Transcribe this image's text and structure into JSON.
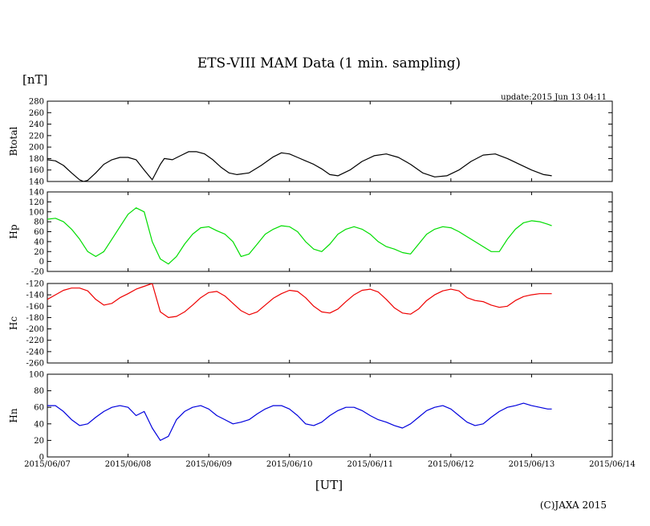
{
  "title": "ETS-VIII MAM Data (1 min. sampling)",
  "unit_label": "[nT]",
  "update_text": "update:2015 Jun 13 04:11",
  "xlabel": "[UT]",
  "copyright": "(C)JAXA 2015",
  "chart_data": {
    "type": "line",
    "x_ticks": [
      "2015/06/07",
      "2015/06/08",
      "2015/06/09",
      "2015/06/10",
      "2015/06/11",
      "2015/06/12",
      "2015/06/13",
      "2015/06/14"
    ],
    "x_range_days": [
      0,
      7
    ],
    "panels": [
      {
        "name": "Btotal",
        "color": "#000000",
        "ylim": [
          140,
          280
        ],
        "yticks": [
          140,
          160,
          180,
          200,
          220,
          240,
          260,
          280
        ],
        "x": [
          0,
          0.1,
          0.2,
          0.3,
          0.4,
          0.45,
          0.5,
          0.6,
          0.7,
          0.8,
          0.9,
          1.0,
          1.1,
          1.2,
          1.3,
          1.4,
          1.45,
          1.55,
          1.65,
          1.75,
          1.85,
          1.95,
          2.05,
          2.15,
          2.25,
          2.35,
          2.5,
          2.65,
          2.8,
          2.9,
          3.0,
          3.1,
          3.2,
          3.3,
          3.4,
          3.5,
          3.6,
          3.75,
          3.9,
          4.05,
          4.2,
          4.35,
          4.5,
          4.65,
          4.8,
          4.95,
          5.1,
          5.25,
          5.4,
          5.55,
          5.7,
          5.85,
          6.0,
          6.15,
          6.25
        ],
        "values": [
          178,
          176,
          168,
          155,
          143,
          140,
          142,
          155,
          170,
          178,
          182,
          182,
          178,
          160,
          143,
          170,
          180,
          178,
          185,
          192,
          192,
          188,
          178,
          165,
          155,
          152,
          155,
          168,
          183,
          190,
          188,
          182,
          176,
          170,
          162,
          152,
          150,
          160,
          175,
          185,
          188,
          182,
          170,
          155,
          148,
          150,
          160,
          175,
          186,
          188,
          180,
          170,
          160,
          152,
          150
        ]
      },
      {
        "name": "Hp",
        "color": "#00dd00",
        "ylim": [
          -20,
          140
        ],
        "yticks": [
          -20,
          0,
          20,
          40,
          60,
          80,
          100,
          120,
          140
        ],
        "x": [
          0,
          0.1,
          0.2,
          0.3,
          0.4,
          0.5,
          0.6,
          0.7,
          0.8,
          0.9,
          1.0,
          1.1,
          1.2,
          1.3,
          1.4,
          1.5,
          1.6,
          1.7,
          1.8,
          1.9,
          2.0,
          2.1,
          2.2,
          2.3,
          2.4,
          2.5,
          2.6,
          2.7,
          2.8,
          2.9,
          3.0,
          3.1,
          3.2,
          3.3,
          3.4,
          3.5,
          3.6,
          3.7,
          3.8,
          3.9,
          4.0,
          4.1,
          4.2,
          4.3,
          4.4,
          4.5,
          4.6,
          4.7,
          4.8,
          4.9,
          5.0,
          5.1,
          5.2,
          5.3,
          5.4,
          5.5,
          5.6,
          5.7,
          5.8,
          5.9,
          6.0,
          6.1,
          6.2,
          6.25
        ],
        "values": [
          85,
          87,
          80,
          65,
          45,
          20,
          10,
          20,
          45,
          70,
          95,
          108,
          100,
          40,
          5,
          -5,
          10,
          35,
          55,
          68,
          70,
          62,
          55,
          40,
          10,
          15,
          35,
          55,
          65,
          72,
          70,
          60,
          40,
          25,
          20,
          35,
          55,
          65,
          70,
          65,
          55,
          40,
          30,
          25,
          18,
          15,
          35,
          55,
          65,
          70,
          68,
          60,
          50,
          40,
          30,
          20,
          20,
          45,
          65,
          78,
          82,
          80,
          75,
          72
        ]
      },
      {
        "name": "Hc",
        "color": "#ee0000",
        "ylim": [
          -260,
          -120
        ],
        "yticks": [
          -260,
          -240,
          -220,
          -200,
          -180,
          -160,
          -140,
          -120
        ],
        "x": [
          0,
          0.1,
          0.2,
          0.3,
          0.4,
          0.5,
          0.6,
          0.7,
          0.8,
          0.9,
          1.0,
          1.1,
          1.2,
          1.3,
          1.4,
          1.5,
          1.6,
          1.7,
          1.8,
          1.9,
          2.0,
          2.1,
          2.2,
          2.3,
          2.4,
          2.5,
          2.6,
          2.7,
          2.8,
          2.9,
          3.0,
          3.1,
          3.2,
          3.3,
          3.4,
          3.5,
          3.6,
          3.7,
          3.8,
          3.9,
          4.0,
          4.1,
          4.2,
          4.3,
          4.4,
          4.5,
          4.6,
          4.7,
          4.8,
          4.9,
          5.0,
          5.1,
          5.2,
          5.3,
          5.4,
          5.5,
          5.6,
          5.7,
          5.8,
          5.9,
          6.0,
          6.1,
          6.2,
          6.25
        ],
        "values": [
          -148,
          -140,
          -132,
          -128,
          -128,
          -133,
          -148,
          -158,
          -155,
          -145,
          -138,
          -130,
          -125,
          -120,
          -170,
          -180,
          -178,
          -170,
          -158,
          -145,
          -136,
          -134,
          -142,
          -155,
          -168,
          -175,
          -170,
          -158,
          -146,
          -138,
          -132,
          -134,
          -145,
          -160,
          -170,
          -172,
          -165,
          -152,
          -140,
          -132,
          -130,
          -135,
          -148,
          -163,
          -172,
          -174,
          -165,
          -150,
          -140,
          -133,
          -130,
          -133,
          -145,
          -150,
          -152,
          -158,
          -162,
          -160,
          -150,
          -143,
          -140,
          -138,
          -138,
          -138
        ]
      },
      {
        "name": "Hn",
        "color": "#0000dd",
        "ylim": [
          0,
          100
        ],
        "yticks": [
          0,
          20,
          40,
          60,
          80,
          100
        ],
        "x": [
          0,
          0.1,
          0.2,
          0.3,
          0.4,
          0.5,
          0.6,
          0.7,
          0.8,
          0.9,
          1.0,
          1.1,
          1.2,
          1.3,
          1.4,
          1.5,
          1.6,
          1.7,
          1.8,
          1.9,
          2.0,
          2.1,
          2.2,
          2.3,
          2.4,
          2.5,
          2.6,
          2.7,
          2.8,
          2.9,
          3.0,
          3.1,
          3.2,
          3.3,
          3.4,
          3.5,
          3.6,
          3.7,
          3.8,
          3.9,
          4.0,
          4.1,
          4.2,
          4.3,
          4.4,
          4.5,
          4.6,
          4.7,
          4.8,
          4.9,
          5.0,
          5.1,
          5.2,
          5.3,
          5.4,
          5.5,
          5.6,
          5.7,
          5.8,
          5.9,
          6.0,
          6.1,
          6.2,
          6.25
        ],
        "values": [
          62,
          62,
          55,
          45,
          38,
          40,
          48,
          55,
          60,
          62,
          60,
          50,
          55,
          35,
          20,
          25,
          45,
          55,
          60,
          62,
          58,
          50,
          45,
          40,
          42,
          45,
          52,
          58,
          62,
          62,
          58,
          50,
          40,
          38,
          42,
          50,
          56,
          60,
          60,
          56,
          50,
          45,
          42,
          38,
          35,
          40,
          48,
          56,
          60,
          62,
          58,
          50,
          42,
          38,
          40,
          48,
          55,
          60,
          62,
          65,
          62,
          60,
          58,
          58
        ]
      }
    ]
  }
}
